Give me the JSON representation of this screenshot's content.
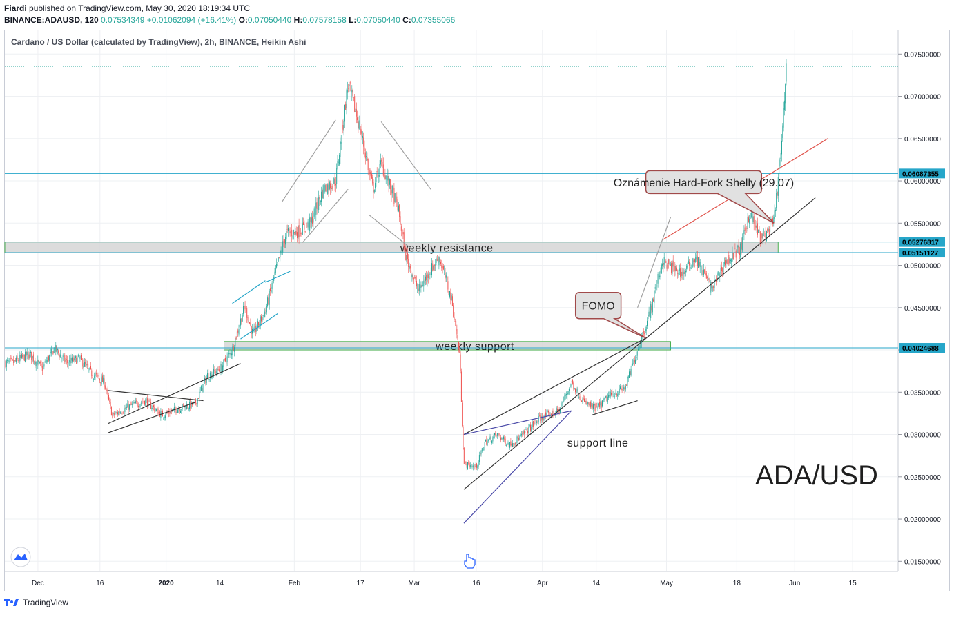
{
  "header": {
    "publisher": "Fiardi",
    "published_text": "published on TradingView.com, May 30, 2020 18:19:34 UTC",
    "symbol": "BINANCE:ADAUSD, 120",
    "last": "0.07534349",
    "change": "+0.01062094 (+16.41%)",
    "open_label": "O:",
    "open": "0.07050440",
    "high_label": "H:",
    "high": "0.07578158",
    "low_label": "L:",
    "low": "0.07050440",
    "close_label": "C:",
    "close": "0.07355066"
  },
  "footer": {
    "brand": "TradingView"
  },
  "colors": {
    "up": "#26a69a",
    "down": "#ef5350",
    "grid": "#eef0f3",
    "zone_fill": "#d6d6d6",
    "zone_border": "#4caf50",
    "hline": "#26a6c9",
    "trend_black": "#333333",
    "trend_red": "#e0524a",
    "channel_gray": "#9e9e9e",
    "triangle_blue": "#4a4aa8",
    "callout_fill": "#e1e1e1",
    "callout_border": "#a14a4a"
  },
  "chart_data": {
    "type": "candlestick",
    "title": "Cardano / US Dollar (calculated by TradingView), 2h, BINANCE, Heikin Ashi",
    "watermark": "ADA/USD",
    "ylim": [
      0.0138,
      0.0778
    ],
    "y_ticks": [
      "0.07500000",
      "0.07000000",
      "0.06500000",
      "0.06000000",
      "0.05500000",
      "0.05000000",
      "0.04500000",
      "0.04000000",
      "0.03500000",
      "0.03000000",
      "0.02500000",
      "0.02000000",
      "0.01500000"
    ],
    "y_tick_values": [
      0.075,
      0.07,
      0.065,
      0.06,
      0.055,
      0.05,
      0.045,
      0.04,
      0.035,
      0.03,
      0.025,
      0.02,
      0.015
    ],
    "x_ticks": [
      "Dec",
      "16",
      "2020",
      "14",
      "Feb",
      "17",
      "Mar",
      "16",
      "Apr",
      "14",
      "May",
      "18",
      "Jun",
      "15"
    ],
    "x_tick_dates": [
      "2019-12-01",
      "2019-12-16",
      "2020-01-01",
      "2020-01-14",
      "2020-02-01",
      "2020-02-17",
      "2020-03-01",
      "2020-03-16",
      "2020-04-01",
      "2020-04-14",
      "2020-05-01",
      "2020-05-18",
      "2020-06-01",
      "2020-06-15"
    ],
    "bold_x_ticks": [
      "2020"
    ],
    "price_labels": [
      {
        "value": 0.06087355,
        "text": "0.06087355"
      },
      {
        "value": 0.05276817,
        "text": "0.05276817"
      },
      {
        "value": 0.05151127,
        "text": "0.05151127"
      },
      {
        "value": 0.04024688,
        "text": "0.04024688"
      }
    ],
    "price_path": [
      [
        "2019-11-25",
        0.0385
      ],
      [
        "2019-11-29",
        0.0395
      ],
      [
        "2019-12-02",
        0.0378
      ],
      [
        "2019-12-05",
        0.0402
      ],
      [
        "2019-12-08",
        0.0385
      ],
      [
        "2019-12-11",
        0.039
      ],
      [
        "2019-12-14",
        0.0372
      ],
      [
        "2019-12-17",
        0.0362
      ],
      [
        "2019-12-19",
        0.0322
      ],
      [
        "2019-12-23",
        0.0333
      ],
      [
        "2019-12-27",
        0.034
      ],
      [
        "2019-12-31",
        0.0323
      ],
      [
        "2020-01-04",
        0.0331
      ],
      [
        "2020-01-08",
        0.0336
      ],
      [
        "2020-01-11",
        0.037
      ],
      [
        "2020-01-14",
        0.0377
      ],
      [
        "2020-01-17",
        0.04
      ],
      [
        "2020-01-20",
        0.0452
      ],
      [
        "2020-01-22",
        0.0418
      ],
      [
        "2020-01-25",
        0.0446
      ],
      [
        "2020-01-28",
        0.0502
      ],
      [
        "2020-01-30",
        0.0538
      ],
      [
        "2020-02-02",
        0.054
      ],
      [
        "2020-02-05",
        0.055
      ],
      [
        "2020-02-08",
        0.059
      ],
      [
        "2020-02-11",
        0.06
      ],
      [
        "2020-02-14",
        0.0715
      ],
      [
        "2020-02-17",
        0.066
      ],
      [
        "2020-02-20",
        0.059
      ],
      [
        "2020-02-22",
        0.062
      ],
      [
        "2020-02-26",
        0.057
      ],
      [
        "2020-02-28",
        0.051
      ],
      [
        "2020-03-02",
        0.047
      ],
      [
        "2020-03-05",
        0.0495
      ],
      [
        "2020-03-07",
        0.051
      ],
      [
        "2020-03-10",
        0.046
      ],
      [
        "2020-03-12",
        0.0395
      ],
      [
        "2020-03-13",
        0.0265
      ],
      [
        "2020-03-16",
        0.0262
      ],
      [
        "2020-03-18",
        0.029
      ],
      [
        "2020-03-21",
        0.03
      ],
      [
        "2020-03-24",
        0.0288
      ],
      [
        "2020-03-27",
        0.0298
      ],
      [
        "2020-03-31",
        0.0318
      ],
      [
        "2020-04-05",
        0.0328
      ],
      [
        "2020-04-08",
        0.0362
      ],
      [
        "2020-04-11",
        0.0338
      ],
      [
        "2020-04-14",
        0.033
      ],
      [
        "2020-04-17",
        0.0345
      ],
      [
        "2020-04-21",
        0.0355
      ],
      [
        "2020-04-24",
        0.04
      ],
      [
        "2020-04-27",
        0.0445
      ],
      [
        "2020-04-30",
        0.0505
      ],
      [
        "2020-05-02",
        0.0498
      ],
      [
        "2020-05-05",
        0.049
      ],
      [
        "2020-05-08",
        0.051
      ],
      [
        "2020-05-12",
        0.0472
      ],
      [
        "2020-05-15",
        0.0503
      ],
      [
        "2020-05-19",
        0.052
      ],
      [
        "2020-05-21",
        0.0562
      ],
      [
        "2020-05-24",
        0.053
      ],
      [
        "2020-05-27",
        0.0552
      ],
      [
        "2020-05-29",
        0.065
      ],
      [
        "2020-05-30",
        0.074
      ]
    ],
    "zones": [
      {
        "label": "weekly resistance",
        "top": 0.05276817,
        "bottom": 0.05151127,
        "x0": "2019-11-23",
        "x1": "2020-05-28"
      },
      {
        "label": "weekly support",
        "top": 0.041,
        "bottom": 0.04,
        "x0": "2020-01-15",
        "x1": "2020-05-02"
      }
    ],
    "trendlines": [
      {
        "kind": "black",
        "from": [
          "2019-12-18",
          0.0313
        ],
        "to": [
          "2020-01-19",
          0.0384
        ]
      },
      {
        "kind": "black",
        "from": [
          "2019-12-18",
          0.0302
        ],
        "to": [
          "2020-01-08",
          0.0338
        ]
      },
      {
        "kind": "black",
        "from": [
          "2019-12-18",
          0.0352
        ],
        "to": [
          "2020-01-10",
          0.034
        ]
      },
      {
        "kind": "black",
        "from": [
          "2020-03-13",
          0.03
        ],
        "to": [
          "2020-04-26",
          0.0414
        ]
      },
      {
        "kind": "black",
        "from": [
          "2020-03-13",
          0.0235
        ],
        "to": [
          "2020-06-06",
          0.058
        ]
      },
      {
        "kind": "black",
        "from": [
          "2020-04-13",
          0.0323
        ],
        "to": [
          "2020-04-24",
          0.034
        ]
      },
      {
        "kind": "red",
        "from": [
          "2020-04-30",
          0.053
        ],
        "to": [
          "2020-06-09",
          0.065
        ]
      },
      {
        "kind": "gray",
        "from": [
          "2020-01-29",
          0.0575
        ],
        "to": [
          "2020-02-11",
          0.0672
        ]
      },
      {
        "kind": "gray",
        "from": [
          "2020-02-03",
          0.0527
        ],
        "to": [
          "2020-02-14",
          0.059
        ]
      },
      {
        "kind": "gray",
        "from": [
          "2020-02-22",
          0.067
        ],
        "to": [
          "2020-03-05",
          0.059
        ]
      },
      {
        "kind": "gray",
        "from": [
          "2020-02-19",
          0.056
        ],
        "to": [
          "2020-03-01",
          0.0517
        ]
      },
      {
        "kind": "gray",
        "from": [
          "2020-04-24",
          0.045
        ],
        "to": [
          "2020-05-02",
          0.0557
        ]
      },
      {
        "kind": "blue",
        "from": [
          "2020-01-17",
          0.0455
        ],
        "to": [
          "2020-01-25",
          0.0482
        ]
      },
      {
        "kind": "blue",
        "from": [
          "2020-01-19",
          0.0413
        ],
        "to": [
          "2020-01-28",
          0.0443
        ]
      },
      {
        "kind": "blue",
        "from": [
          "2020-01-25",
          0.048
        ],
        "to": [
          "2020-01-31",
          0.0493
        ]
      },
      {
        "kind": "triangle",
        "from": [
          "2020-03-13",
          0.03
        ],
        "to": [
          "2020-04-08",
          0.0328
        ]
      },
      {
        "kind": "triangle",
        "from": [
          "2020-03-13",
          0.0195
        ],
        "to": [
          "2020-04-08",
          0.0328
        ]
      }
    ],
    "annotations": [
      {
        "text": "Oznámenie Hard-Fork Shelly (29.07)",
        "box": [
          "2020-04-26",
          0.0612,
          "2020-05-24",
          0.0585
        ],
        "pointer": [
          "2020-05-27",
          0.055
        ]
      },
      {
        "text": "FOMO",
        "box": [
          "2020-04-09",
          0.0468,
          "2020-04-20",
          0.0437
        ],
        "pointer": [
          "2020-04-26",
          0.0414
        ]
      },
      {
        "text": "support line",
        "at": [
          "2020-04-07",
          0.029
        ]
      }
    ]
  }
}
